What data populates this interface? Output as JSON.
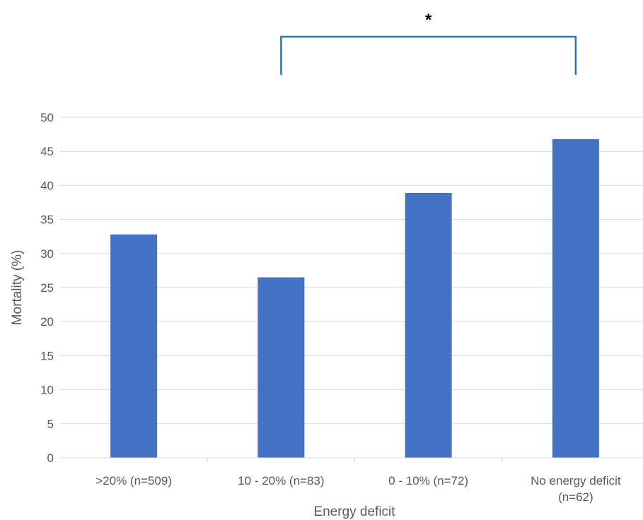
{
  "chart_data": {
    "type": "bar",
    "title": "",
    "xlabel": "Energy deficit",
    "ylabel": "Mortality (%)",
    "ylim": [
      0,
      50
    ],
    "yticks": [
      "0",
      "5",
      "10",
      "15",
      "20",
      "25",
      "30",
      "35",
      "40",
      "45",
      "50"
    ],
    "grid": true,
    "legend": "none",
    "categories": [
      ">20% (n=509)",
      "10 - 20% (n=83)",
      "0 - 10% (n=72)",
      "No energy deficit (n=62)"
    ],
    "category_lines": [
      [
        ">20% (n=509)"
      ],
      [
        "10 - 20% (n=83)"
      ],
      [
        "0 - 10% (n=72)"
      ],
      [
        "No energy deficit",
        "(n=62)"
      ]
    ],
    "values": [
      32.8,
      26.5,
      38.9,
      46.8
    ],
    "bar_color": "#4472C4",
    "annotations": [
      {
        "text": "*",
        "type": "significance-bracket",
        "from_category": 1,
        "to_category": 3
      }
    ]
  }
}
